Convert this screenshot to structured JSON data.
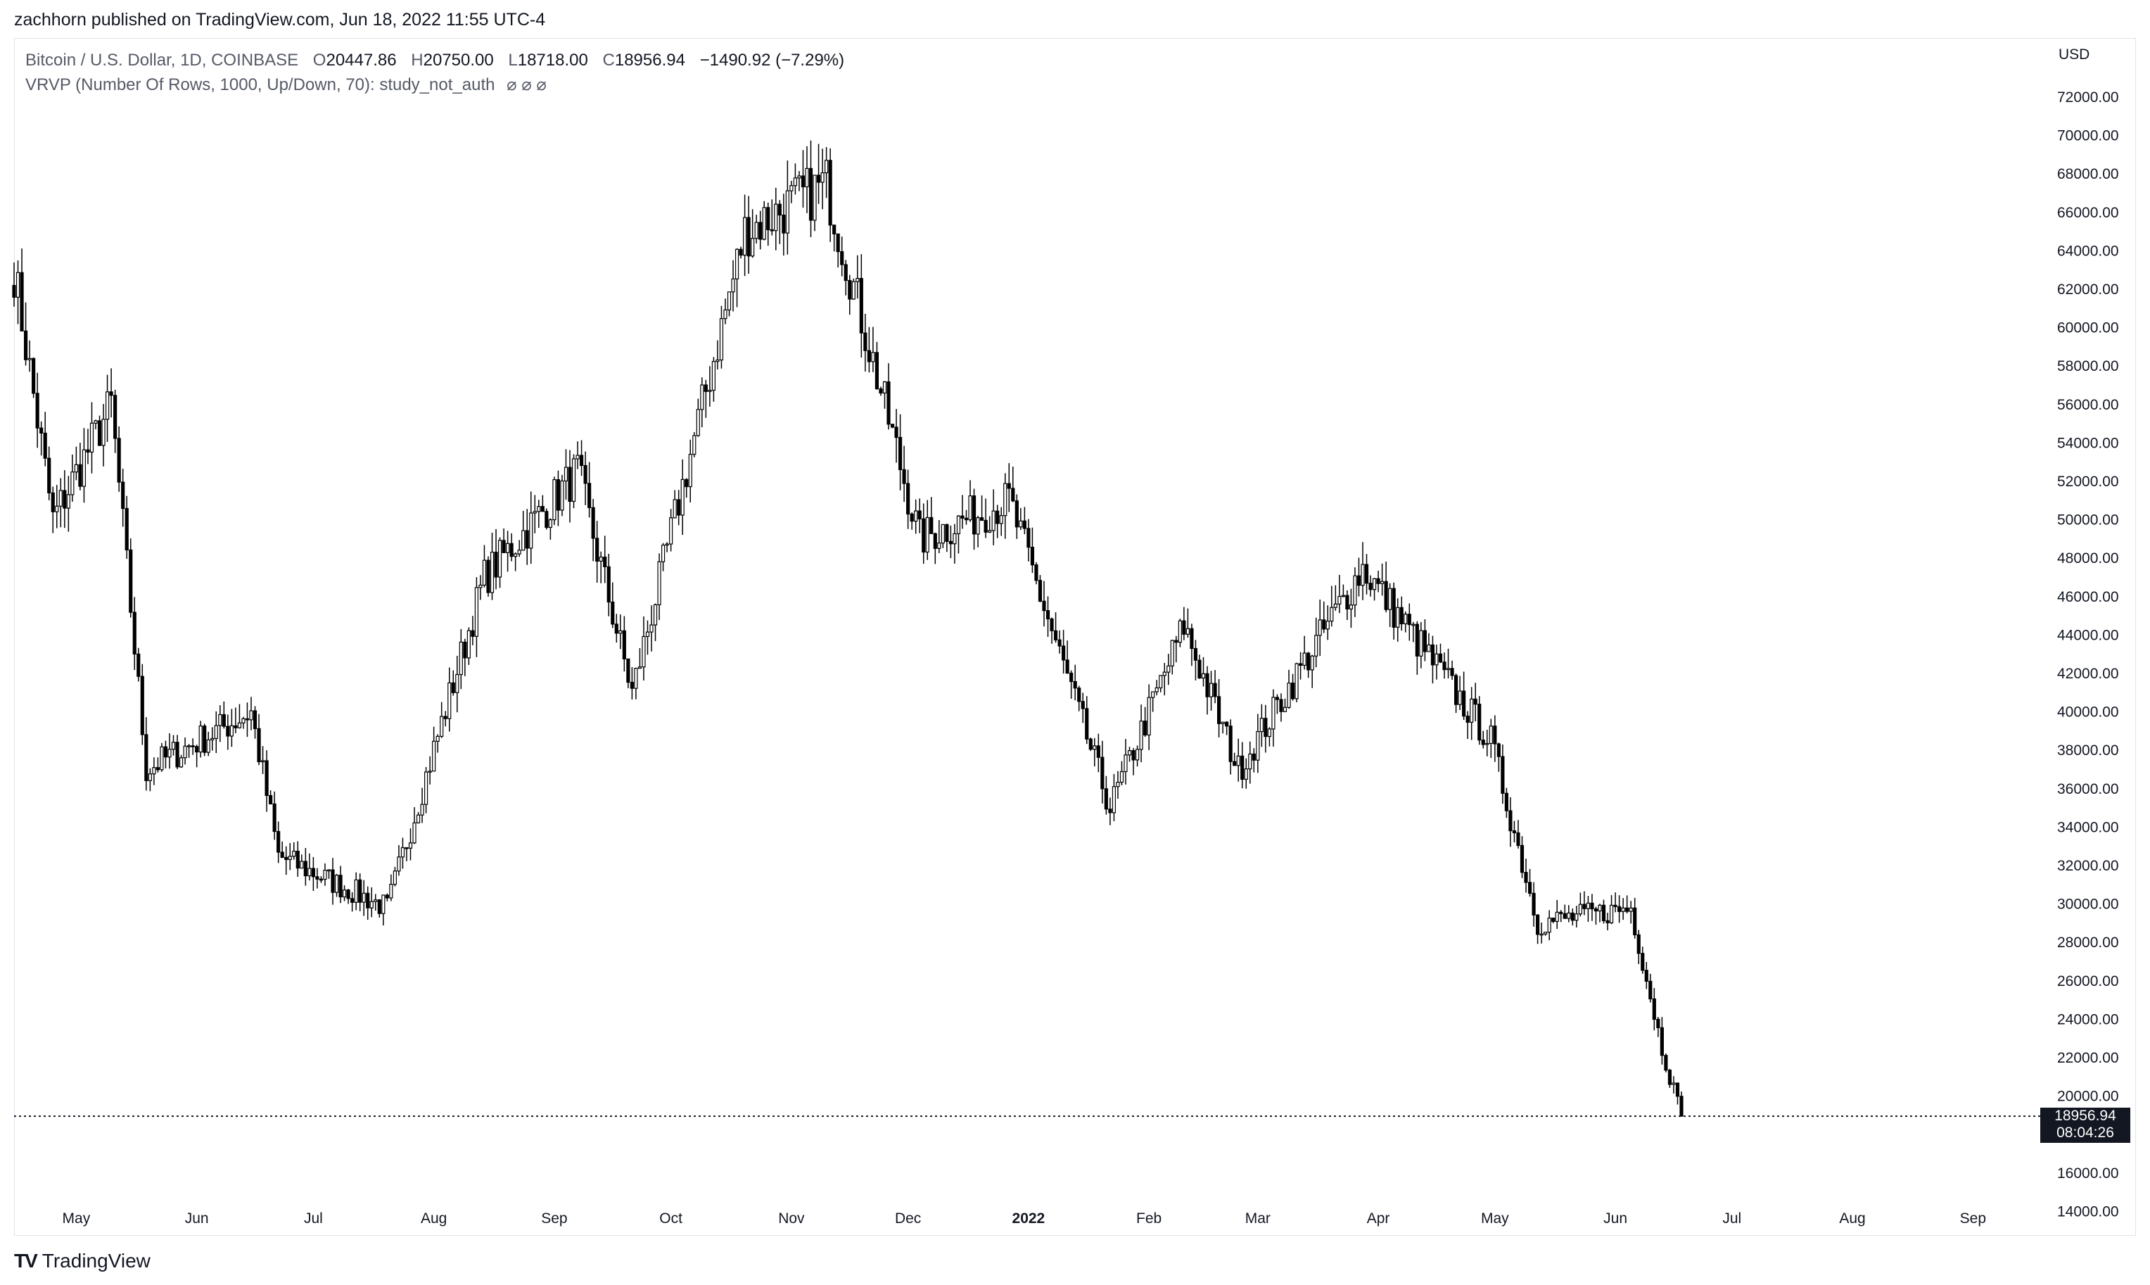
{
  "header": {
    "published": "zachhorn published on TradingView.com, Jun 18, 2022 11:55 UTC-4"
  },
  "legend": {
    "symbol": "Bitcoin / U.S. Dollar, 1D, COINBASE",
    "open_label": "O",
    "open": "20447.86",
    "high_label": "H",
    "high": "20750.00",
    "low_label": "L",
    "low": "18718.00",
    "close_label": "C",
    "close": "18956.94",
    "change": "−1490.92 (−7.29%)",
    "indicator": "VRVP (Number Of Rows, 1000, Up/Down, 70): study_not_auth",
    "indicator_values": "⌀  ⌀  ⌀"
  },
  "price_axis": {
    "currency": "USD",
    "ticks": [
      "72000.00",
      "70000.00",
      "68000.00",
      "66000.00",
      "64000.00",
      "62000.00",
      "60000.00",
      "58000.00",
      "56000.00",
      "54000.00",
      "52000.00",
      "50000.00",
      "48000.00",
      "46000.00",
      "44000.00",
      "42000.00",
      "40000.00",
      "38000.00",
      "36000.00",
      "34000.00",
      "32000.00",
      "30000.00",
      "28000.00",
      "26000.00",
      "24000.00",
      "22000.00",
      "20000.00",
      "16000.00",
      "14000.00"
    ],
    "last_price": "18956.94",
    "countdown": "08:04:26"
  },
  "time_axis": {
    "labels": [
      "May",
      "Jun",
      "Jul",
      "Aug",
      "Sep",
      "Oct",
      "Nov",
      "Dec",
      "2022",
      "Feb",
      "Mar",
      "Apr",
      "May",
      "Jun",
      "Jul",
      "Aug",
      "Sep"
    ],
    "bold_label": "2022"
  },
  "footer": {
    "brand": "TradingView",
    "logo": "TV"
  },
  "colors": {
    "candle": "#000000",
    "up_fill": "#ffffff",
    "down_fill": "#000000",
    "grid": "#ffffff",
    "text": "#131722"
  },
  "chart_data": {
    "type": "candlestick",
    "symbol": "BTCUSD",
    "interval": "1D",
    "ylim": [
      13000,
      73000
    ],
    "start_date": "2021-04-15",
    "end_date": "2022-06-18",
    "last_close": 18956.94,
    "key_points": [
      {
        "date": "2021-04-15",
        "close": 63000
      },
      {
        "date": "2021-04-25",
        "close": 50000
      },
      {
        "date": "2021-05-10",
        "close": 56000
      },
      {
        "date": "2021-05-19",
        "close": 37000
      },
      {
        "date": "2021-06-15",
        "close": 40000
      },
      {
        "date": "2021-06-22",
        "close": 32500
      },
      {
        "date": "2021-07-20",
        "close": 29800
      },
      {
        "date": "2021-08-14",
        "close": 47000
      },
      {
        "date": "2021-09-07",
        "close": 52500
      },
      {
        "date": "2021-09-21",
        "close": 41000
      },
      {
        "date": "2021-10-20",
        "close": 65000
      },
      {
        "date": "2021-11-10",
        "close": 67500
      },
      {
        "date": "2021-12-04",
        "close": 49000
      },
      {
        "date": "2021-12-27",
        "close": 51000
      },
      {
        "date": "2022-01-22",
        "close": 35000
      },
      {
        "date": "2022-02-10",
        "close": 44500
      },
      {
        "date": "2022-02-24",
        "close": 37000
      },
      {
        "date": "2022-03-28",
        "close": 47500
      },
      {
        "date": "2022-04-30",
        "close": 38500
      },
      {
        "date": "2022-05-12",
        "close": 29000
      },
      {
        "date": "2022-06-05",
        "close": 29800
      },
      {
        "date": "2022-06-13",
        "close": 22500
      },
      {
        "date": "2022-06-18",
        "close": 18956.94
      }
    ]
  }
}
